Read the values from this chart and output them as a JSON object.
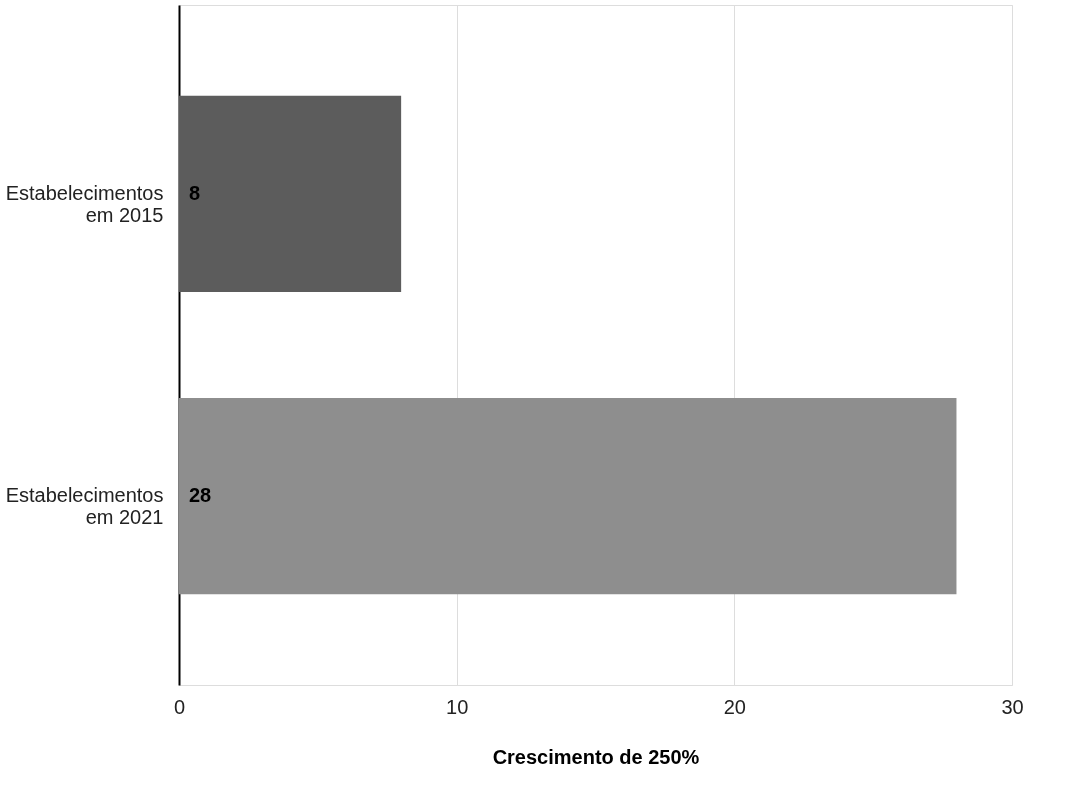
{
  "chart_data": {
    "type": "bar",
    "orientation": "horizontal",
    "categories": [
      "Estabelecimentos em 2015",
      "Estabelecimentos em 2021"
    ],
    "values": [
      8,
      28
    ],
    "colors": [
      "#5c5c5c",
      "#8e8e8e"
    ],
    "xlabel": "Crescimento de 250%",
    "xlim": [
      0,
      30
    ],
    "xticks": [
      0,
      10,
      20,
      30
    ],
    "grid": "x",
    "data_labels": true,
    "legend": false
  }
}
